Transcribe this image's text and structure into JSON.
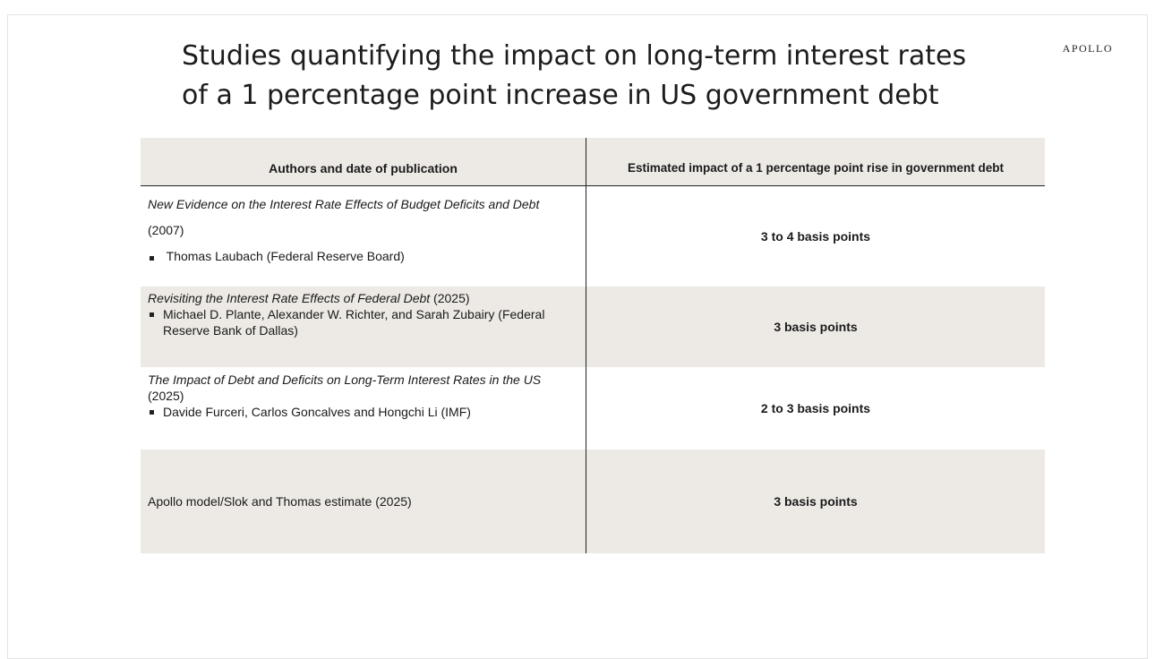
{
  "title": {
    "line1": "Studies quantifying the impact on long-term interest rates",
    "line2": "of a 1 percentage point increase in US government debt"
  },
  "brand": "APOLLO",
  "table": {
    "headers": {
      "authors": "Authors and date of publication",
      "impact": "Estimated impact of a 1 percentage point rise in government debt"
    },
    "rows": [
      {
        "study": "New Evidence on the Interest Rate Effects of Budget Deficits and Debt",
        "year": "(2007)",
        "authors": "Thomas Laubach (Federal Reserve Board)",
        "impact": "3 to 4 basis points"
      },
      {
        "study": "Revisiting the Interest Rate Effects of Federal Debt",
        "year": "(2025)",
        "authors": "Michael D. Plante, Alexander W. Richter, and Sarah Zubairy (Federal Reserve Bank of Dallas)",
        "impact": "3 basis points"
      },
      {
        "study": "The Impact of Debt and Deficits on Long-Term Interest Rates in the US",
        "year": "(2025)",
        "authors": "Davide Furceri, Carlos Goncalves and Hongchi Li (IMF)",
        "impact": "2 to 3 basis points"
      },
      {
        "study": "Apollo model/Slok and Thomas estimate (2025)",
        "impact": "3 basis points"
      }
    ]
  }
}
